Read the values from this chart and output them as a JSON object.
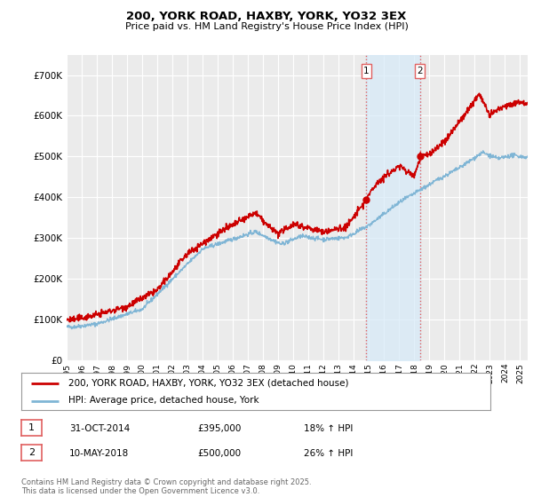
{
  "title": "200, YORK ROAD, HAXBY, YORK, YO32 3EX",
  "subtitle": "Price paid vs. HM Land Registry's House Price Index (HPI)",
  "ylim": [
    0,
    750000
  ],
  "yticks": [
    0,
    100000,
    200000,
    300000,
    400000,
    500000,
    600000,
    700000
  ],
  "ytick_labels": [
    "£0",
    "£100K",
    "£200K",
    "£300K",
    "£400K",
    "£500K",
    "£600K",
    "£700K"
  ],
  "background_color": "#ffffff",
  "plot_bg_color": "#ebebeb",
  "grid_color": "#ffffff",
  "red_line_color": "#cc0000",
  "blue_line_color": "#7fb5d5",
  "shade_color": "#d6eaf8",
  "vline_color": "#e06060",
  "purchase1_year": 2014.83,
  "purchase2_year": 2018.36,
  "purchase1_price": 395000,
  "purchase2_price": 500000,
  "purchase1_label": "1",
  "purchase2_label": "2",
  "legend1": "200, YORK ROAD, HAXBY, YORK, YO32 3EX (detached house)",
  "legend2": "HPI: Average price, detached house, York",
  "table_row1": [
    "1",
    "31-OCT-2014",
    "£395,000",
    "18% ↑ HPI"
  ],
  "table_row2": [
    "2",
    "10-MAY-2018",
    "£500,000",
    "26% ↑ HPI"
  ],
  "footer": "Contains HM Land Registry data © Crown copyright and database right 2025.\nThis data is licensed under the Open Government Licence v3.0.",
  "xmin": 1995,
  "xmax": 2025.5,
  "xtick_years": [
    1995,
    1996,
    1997,
    1998,
    1999,
    2000,
    2001,
    2002,
    2003,
    2004,
    2005,
    2006,
    2007,
    2008,
    2009,
    2010,
    2011,
    2012,
    2013,
    2014,
    2015,
    2016,
    2017,
    2018,
    2019,
    2020,
    2021,
    2022,
    2023,
    2024,
    2025
  ]
}
